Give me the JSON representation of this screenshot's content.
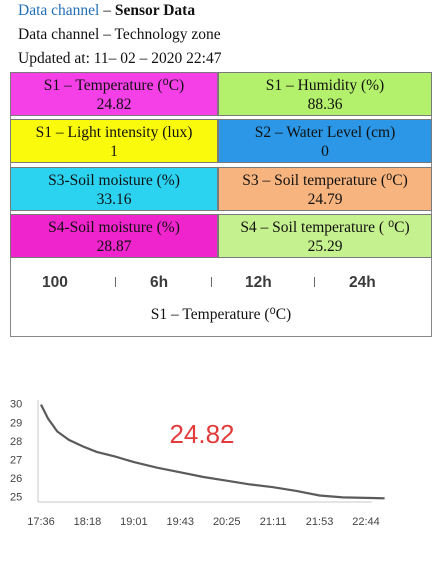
{
  "header": {
    "line1_prefix": "Data channel",
    "line1_sep": " – ",
    "line1_title": "Sensor Data",
    "line2": "Data channel – Technology  zone",
    "line3": "Updated at: 11– 02 – 2020 22:47"
  },
  "tiles": [
    {
      "label": "S1 – Temperature (⁰C)",
      "value": "24.82",
      "color": "#f53fe7"
    },
    {
      "label": "S1 – Humidity (%)",
      "value": "88.36",
      "color": "#b3f06b"
    },
    {
      "label": "S1 – Light intensity (lux)",
      "value": "1",
      "color": "#fafb0c"
    },
    {
      "label": "S2 – Water Level (cm)",
      "value": "0",
      "color": "#2b97e6"
    },
    {
      "label": "S3-Soil moisture (%)",
      "value": "33.16",
      "color": "#2bd3f0"
    },
    {
      "label": "S3 – Soil temperature (⁰C)",
      "value": "24.79",
      "color": "#f7b47f"
    },
    {
      "label": "S4-Soil moisture (%)",
      "value": "28.87",
      "color": "#f024cc"
    },
    {
      "label": "S4 – Soil temperature ( ⁰C)",
      "value": "25.29",
      "color": "#c5f18f"
    }
  ],
  "tabs": [
    "100",
    "6h",
    "12h",
    "24h"
  ],
  "selected_label": "S1 – Temperature (⁰C)",
  "chart_data": {
    "type": "line",
    "current_value": "24.82",
    "x_labels": [
      "17:36",
      "18:18",
      "19:01",
      "19:43",
      "20:25",
      "21:11",
      "21:53",
      "22:44"
    ],
    "y_ticks": [
      25,
      26,
      27,
      28,
      29,
      30
    ],
    "ylim": [
      24.7,
      30.2
    ],
    "points": [
      {
        "x": 0,
        "y": 29.95
      },
      {
        "x": 0.15,
        "y": 29.2
      },
      {
        "x": 0.35,
        "y": 28.5
      },
      {
        "x": 0.6,
        "y": 28.05
      },
      {
        "x": 0.9,
        "y": 27.7
      },
      {
        "x": 1.2,
        "y": 27.4
      },
      {
        "x": 1.6,
        "y": 27.15
      },
      {
        "x": 2.0,
        "y": 26.85
      },
      {
        "x": 2.5,
        "y": 26.55
      },
      {
        "x": 3.0,
        "y": 26.3
      },
      {
        "x": 3.5,
        "y": 26.05
      },
      {
        "x": 4.0,
        "y": 25.85
      },
      {
        "x": 4.5,
        "y": 25.65
      },
      {
        "x": 5.0,
        "y": 25.5
      },
      {
        "x": 5.5,
        "y": 25.3
      },
      {
        "x": 6.0,
        "y": 25.05
      },
      {
        "x": 6.5,
        "y": 24.95
      },
      {
        "x": 7.0,
        "y": 24.92
      },
      {
        "x": 7.4,
        "y": 24.9
      }
    ],
    "line_color": "#5b5b5b",
    "value_color": "#e23b3b",
    "grid": false
  }
}
